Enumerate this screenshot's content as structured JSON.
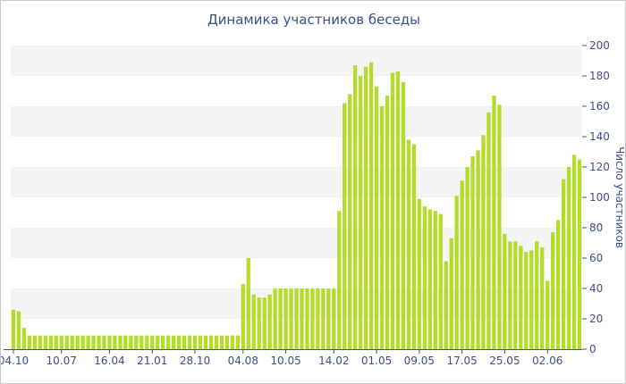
{
  "chart_data": {
    "type": "bar",
    "title": "Динамика участников беседы",
    "xlabel": "",
    "ylabel": "Число участников",
    "ylim": [
      0,
      200
    ],
    "yticks": [
      0,
      20,
      40,
      60,
      80,
      100,
      120,
      140,
      160,
      180,
      200
    ],
    "grid": "horizontal-bands",
    "bar_color": "#b5dc2b",
    "band_color": "#f4f4f4",
    "text_color": "#3b4f8c",
    "xtick_labels": [
      {
        "index": 0,
        "label": "04.10"
      },
      {
        "index": 9,
        "label": "10.07"
      },
      {
        "index": 18,
        "label": "16.04"
      },
      {
        "index": 26,
        "label": "21.01"
      },
      {
        "index": 34,
        "label": "28.10"
      },
      {
        "index": 43,
        "label": "04.08"
      },
      {
        "index": 51,
        "label": "10.05"
      },
      {
        "index": 60,
        "label": "14.02"
      },
      {
        "index": 68,
        "label": "01.05"
      },
      {
        "index": 76,
        "label": "09.05"
      },
      {
        "index": 84,
        "label": "17.05"
      },
      {
        "index": 92,
        "label": "25.05"
      },
      {
        "index": 100,
        "label": "02.06"
      }
    ],
    "values": [
      26,
      25,
      14,
      9,
      9,
      9,
      9,
      9,
      9,
      9,
      9,
      9,
      9,
      9,
      9,
      9,
      9,
      9,
      9,
      9,
      9,
      9,
      9,
      9,
      9,
      9,
      9,
      9,
      9,
      9,
      9,
      9,
      9,
      9,
      9,
      9,
      9,
      9,
      9,
      9,
      9,
      9,
      9,
      43,
      60,
      36,
      34,
      34,
      36,
      40,
      40,
      40,
      40,
      40,
      40,
      40,
      40,
      40,
      40,
      40,
      40,
      91,
      162,
      168,
      187,
      180,
      186,
      189,
      173,
      160,
      167,
      182,
      183,
      176,
      138,
      135,
      99,
      94,
      92,
      91,
      89,
      58,
      73,
      101,
      111,
      120,
      127,
      131,
      141,
      156,
      167,
      161,
      76,
      71,
      71,
      68,
      64,
      65,
      71,
      67,
      45,
      77,
      85,
      112,
      120,
      128,
      125
    ]
  }
}
